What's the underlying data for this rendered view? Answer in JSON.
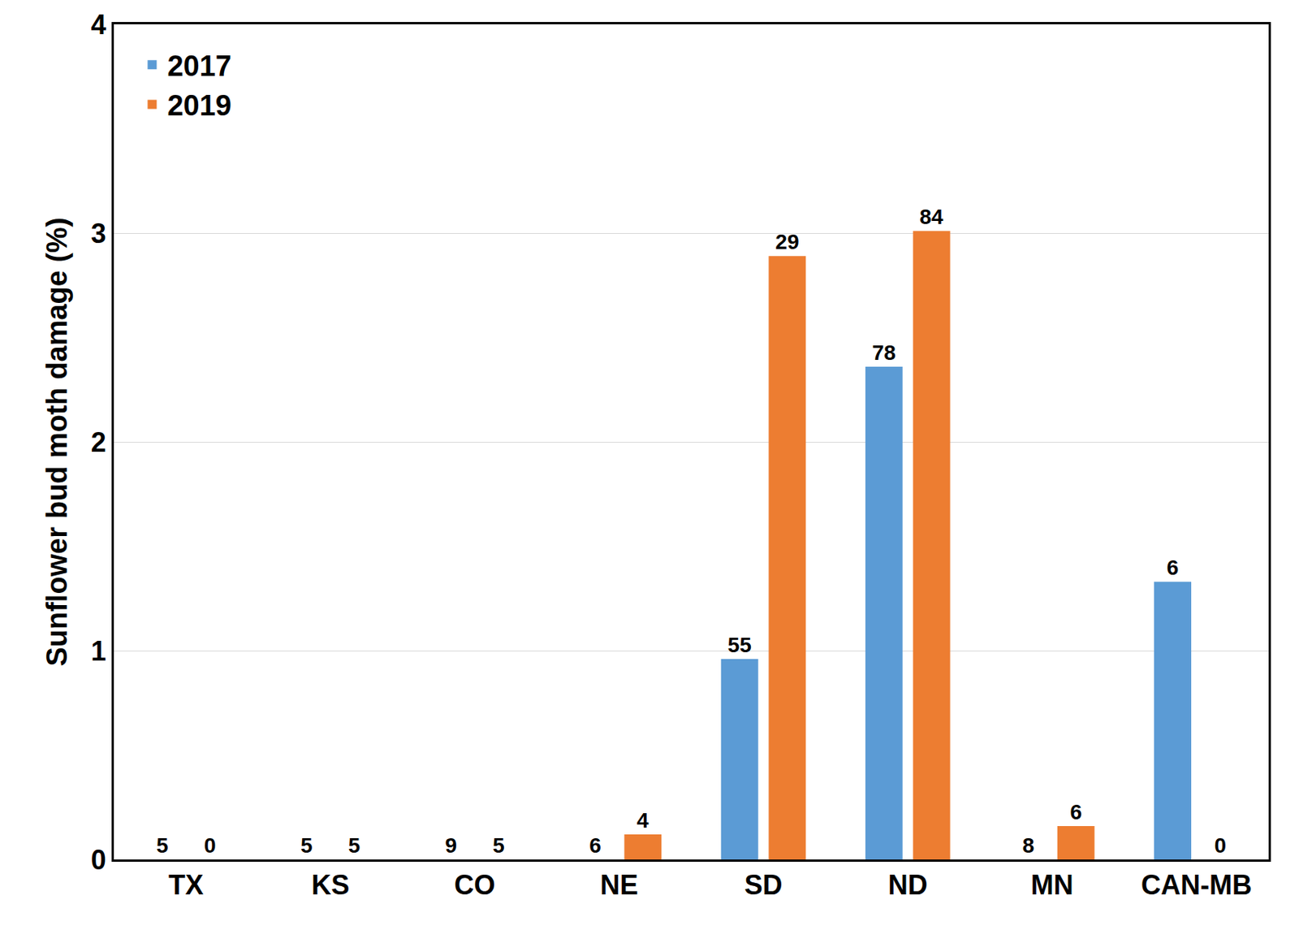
{
  "chart_data": {
    "type": "bar",
    "y_label": "Sunflower bud moth damage (%)",
    "categories": [
      "TX",
      "KS",
      "CO",
      "NE",
      "SD",
      "ND",
      "MN",
      "CAN-MB"
    ],
    "series": [
      {
        "name": "2017",
        "color": "#5b9bd5",
        "values": [
          0,
          0,
          0,
          0,
          0.96,
          2.36,
          0,
          1.33
        ],
        "n": [
          5,
          5,
          9,
          6,
          55,
          78,
          8,
          6
        ]
      },
      {
        "name": "2019",
        "color": "#ed7d31",
        "values": [
          0,
          0,
          0,
          0.12,
          2.89,
          3.01,
          0.16,
          0
        ],
        "n": [
          0,
          5,
          5,
          4,
          29,
          84,
          6,
          0
        ]
      }
    ],
    "ylim": [
      0,
      4
    ],
    "yticks": [
      0,
      1,
      2,
      3,
      4
    ],
    "grid": true,
    "legend": "upper left"
  }
}
